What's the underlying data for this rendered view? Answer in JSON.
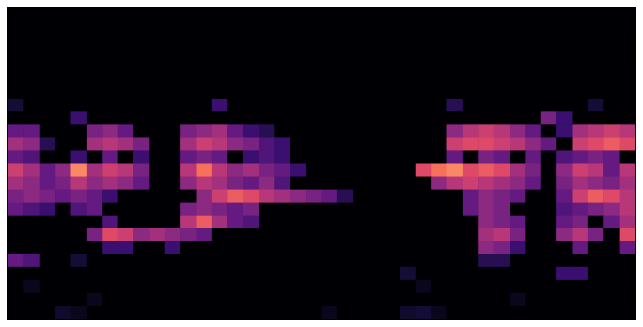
{
  "chart_data": {
    "type": "heatmap",
    "tick_labels": false,
    "zlim": [
      0,
      1
    ],
    "cells": [
      [
        0,
        0,
        0,
        0,
        0,
        0,
        0,
        0,
        0,
        0,
        0,
        0,
        0,
        0,
        0,
        0,
        0,
        0,
        0,
        0,
        0,
        0,
        0,
        0,
        0,
        0,
        0,
        0,
        0,
        0,
        0,
        0,
        0,
        0,
        0,
        0,
        0,
        0,
        0,
        0
      ],
      [
        0,
        0,
        0,
        0,
        0,
        0,
        0,
        0,
        0,
        0,
        0,
        0,
        0,
        0,
        0,
        0,
        0,
        0,
        0,
        0,
        0,
        0,
        0,
        0,
        0,
        0,
        0,
        0,
        0,
        0,
        0,
        0,
        0,
        0,
        0,
        0,
        0,
        0,
        0,
        0
      ],
      [
        0,
        0,
        0,
        0,
        0,
        0,
        0,
        0,
        0,
        0,
        0,
        0,
        0,
        0,
        0,
        0,
        0,
        0,
        0,
        0,
        0,
        0,
        0,
        0,
        0,
        0,
        0,
        0,
        0,
        0,
        0,
        0,
        0,
        0,
        0,
        0,
        0,
        0,
        0,
        0
      ],
      [
        0,
        0,
        0,
        0,
        0,
        0,
        0,
        0,
        0,
        0,
        0,
        0,
        0,
        0,
        0,
        0,
        0,
        0,
        0,
        0,
        0,
        0,
        0,
        0,
        0,
        0,
        0,
        0,
        0,
        0,
        0,
        0,
        0,
        0,
        0,
        0,
        0,
        0,
        0,
        0
      ],
      [
        0,
        0,
        0,
        0,
        0,
        0,
        0,
        0,
        0,
        0,
        0,
        0,
        0,
        0,
        0,
        0,
        0,
        0,
        0,
        0,
        0,
        0,
        0,
        0,
        0,
        0,
        0,
        0,
        0,
        0,
        0,
        0,
        0,
        0,
        0,
        0,
        0,
        0,
        0,
        0
      ],
      [
        0,
        0,
        0,
        0,
        0,
        0,
        0,
        0,
        0,
        0,
        0,
        0,
        0,
        0,
        0,
        0,
        0,
        0,
        0,
        0,
        0,
        0,
        0,
        0,
        0,
        0,
        0,
        0,
        0,
        0,
        0,
        0,
        0,
        0,
        0,
        0,
        0,
        0,
        0,
        0
      ],
      [
        0,
        0,
        0,
        0,
        0,
        0,
        0,
        0,
        0,
        0,
        0,
        0,
        0,
        0,
        0,
        0,
        0,
        0,
        0,
        0,
        0,
        0,
        0,
        0,
        0,
        0,
        0,
        0,
        0,
        0,
        0,
        0,
        0,
        0,
        0,
        0,
        0,
        0,
        0,
        0
      ],
      [
        0.1,
        0,
        0,
        0,
        0,
        0,
        0,
        0,
        0,
        0,
        0,
        0,
        0,
        0.2,
        0,
        0,
        0,
        0,
        0,
        0,
        0,
        0,
        0,
        0,
        0,
        0,
        0,
        0,
        0.15,
        0,
        0,
        0,
        0,
        0,
        0,
        0,
        0,
        0.1,
        0,
        0
      ],
      [
        0,
        0,
        0,
        0,
        0.2,
        0,
        0,
        0,
        0,
        0,
        0,
        0,
        0,
        0,
        0,
        0,
        0,
        0,
        0,
        0,
        0,
        0,
        0,
        0,
        0,
        0,
        0,
        0,
        0,
        0,
        0,
        0,
        0,
        0,
        0.35,
        0.2,
        0,
        0,
        0,
        0
      ],
      [
        0.3,
        0.3,
        0,
        0,
        0,
        0.35,
        0.4,
        0.3,
        0,
        0,
        0,
        0.35,
        0.4,
        0.45,
        0.3,
        0.2,
        0.15,
        0,
        0,
        0,
        0,
        0,
        0,
        0,
        0,
        0,
        0,
        0,
        0.4,
        0.5,
        0.55,
        0.5,
        0.4,
        0.3,
        0,
        0.2,
        0.45,
        0.5,
        0.55,
        0.5
      ],
      [
        0.45,
        0.4,
        0.15,
        0,
        0,
        0.45,
        0.5,
        0.45,
        0.35,
        0,
        0,
        0.45,
        0.55,
        0.5,
        0.4,
        0.35,
        0.25,
        0.2,
        0,
        0,
        0,
        0,
        0,
        0,
        0,
        0,
        0,
        0,
        0.55,
        0.6,
        0.6,
        0.55,
        0.5,
        0.4,
        0.3,
        0,
        0.55,
        0.6,
        0.65,
        0.6
      ],
      [
        0.3,
        0.25,
        0,
        0,
        0.2,
        0,
        0.3,
        0,
        0.2,
        0,
        0,
        0.3,
        0.35,
        0.3,
        0,
        0.2,
        0.25,
        0.2,
        0,
        0,
        0,
        0,
        0,
        0,
        0,
        0,
        0,
        0,
        0.3,
        0,
        0.35,
        0.3,
        0,
        0.3,
        0,
        0.25,
        0.3,
        0.35,
        0.3,
        0
      ],
      [
        0.55,
        0.45,
        0.3,
        0.4,
        0.75,
        0.45,
        0.55,
        0.5,
        0.35,
        0,
        0,
        0.5,
        0.7,
        0.5,
        0.4,
        0.45,
        0.35,
        0.3,
        0.2,
        0,
        0,
        0,
        0,
        0,
        0,
        0,
        0.6,
        0.7,
        0.75,
        0.6,
        0.65,
        0.6,
        0.45,
        0.35,
        0,
        0.4,
        0.55,
        0.5,
        0.3,
        0.5
      ],
      [
        0.45,
        0.4,
        0.3,
        0.35,
        0.5,
        0.4,
        0.45,
        0.4,
        0.3,
        0,
        0,
        0.4,
        0.5,
        0.45,
        0.35,
        0.3,
        0.4,
        0.25,
        0,
        0,
        0,
        0,
        0,
        0,
        0,
        0,
        0,
        0.4,
        0.5,
        0.55,
        0.5,
        0.45,
        0.4,
        0.3,
        0,
        0.35,
        0.45,
        0.4,
        0.35,
        0.45
      ],
      [
        0.35,
        0.4,
        0.35,
        0.3,
        0.35,
        0.3,
        0.2,
        0,
        0,
        0,
        0,
        0,
        0.4,
        0.55,
        0.65,
        0.6,
        0.5,
        0.45,
        0.4,
        0.35,
        0.3,
        0.15,
        0,
        0,
        0,
        0,
        0,
        0,
        0,
        0.3,
        0.4,
        0.35,
        0.3,
        0,
        0,
        0.3,
        0.55,
        0.65,
        0.6,
        0.5
      ],
      [
        0.3,
        0.25,
        0.2,
        0,
        0.25,
        0.3,
        0,
        0,
        0,
        0,
        0,
        0.35,
        0.4,
        0.35,
        0.3,
        0.35,
        0,
        0,
        0,
        0,
        0,
        0,
        0,
        0,
        0,
        0,
        0,
        0,
        0,
        0.3,
        0.4,
        0.35,
        0,
        0,
        0,
        0.25,
        0.3,
        0.35,
        0.4,
        0.5
      ],
      [
        0,
        0,
        0,
        0,
        0,
        0,
        0.25,
        0,
        0,
        0,
        0,
        0.5,
        0.65,
        0.45,
        0.3,
        0.25,
        0,
        0,
        0,
        0,
        0,
        0,
        0,
        0,
        0,
        0,
        0,
        0,
        0,
        0,
        0.4,
        0.35,
        0.3,
        0,
        0,
        0.3,
        0.35,
        0,
        0.3,
        0.45
      ],
      [
        0,
        0,
        0,
        0,
        0,
        0.35,
        0.6,
        0.55,
        0.4,
        0.45,
        0.4,
        0.35,
        0.3,
        0,
        0,
        0,
        0,
        0,
        0,
        0,
        0,
        0,
        0,
        0,
        0,
        0,
        0,
        0,
        0,
        0,
        0.45,
        0.5,
        0.35,
        0,
        0,
        0.4,
        0.5,
        0.35,
        0,
        0.6
      ],
      [
        0,
        0,
        0,
        0,
        0,
        0,
        0.2,
        0.2,
        0,
        0,
        0.2,
        0,
        0,
        0,
        0,
        0,
        0,
        0,
        0,
        0,
        0,
        0,
        0,
        0,
        0,
        0,
        0,
        0,
        0,
        0,
        0.4,
        0.35,
        0.2,
        0,
        0,
        0,
        0.3,
        0,
        0,
        0.3
      ],
      [
        0.3,
        0.25,
        0,
        0,
        0.1,
        0,
        0,
        0,
        0,
        0,
        0,
        0,
        0,
        0,
        0,
        0,
        0,
        0,
        0,
        0,
        0,
        0,
        0,
        0,
        0,
        0,
        0,
        0,
        0,
        0,
        0.15,
        0.15,
        0,
        0,
        0,
        0,
        0,
        0,
        0,
        0
      ],
      [
        0,
        0,
        0,
        0,
        0,
        0,
        0,
        0,
        0,
        0,
        0,
        0,
        0,
        0,
        0,
        0,
        0,
        0,
        0,
        0,
        0,
        0,
        0,
        0,
        0,
        0.1,
        0,
        0,
        0,
        0,
        0,
        0,
        0,
        0,
        0,
        0.2,
        0.2,
        0,
        0,
        0
      ],
      [
        0,
        0.05,
        0,
        0,
        0,
        0,
        0,
        0,
        0,
        0,
        0,
        0,
        0,
        0,
        0,
        0,
        0,
        0,
        0,
        0,
        0,
        0,
        0,
        0,
        0,
        0,
        0.05,
        0,
        0,
        0,
        0,
        0,
        0,
        0,
        0,
        0,
        0,
        0,
        0,
        0
      ],
      [
        0,
        0,
        0,
        0,
        0,
        0.05,
        0,
        0,
        0,
        0,
        0,
        0,
        0,
        0,
        0,
        0,
        0,
        0,
        0,
        0,
        0,
        0,
        0,
        0,
        0,
        0,
        0,
        0,
        0,
        0,
        0,
        0,
        0.05,
        0,
        0,
        0,
        0,
        0,
        0,
        0
      ],
      [
        0,
        0,
        0,
        0.08,
        0.05,
        0,
        0,
        0,
        0,
        0,
        0,
        0,
        0,
        0,
        0,
        0,
        0,
        0,
        0,
        0,
        0.05,
        0,
        0,
        0,
        0,
        0.08,
        0.1,
        0.05,
        0,
        0,
        0,
        0,
        0,
        0,
        0,
        0,
        0,
        0,
        0,
        0
      ]
    ]
  }
}
